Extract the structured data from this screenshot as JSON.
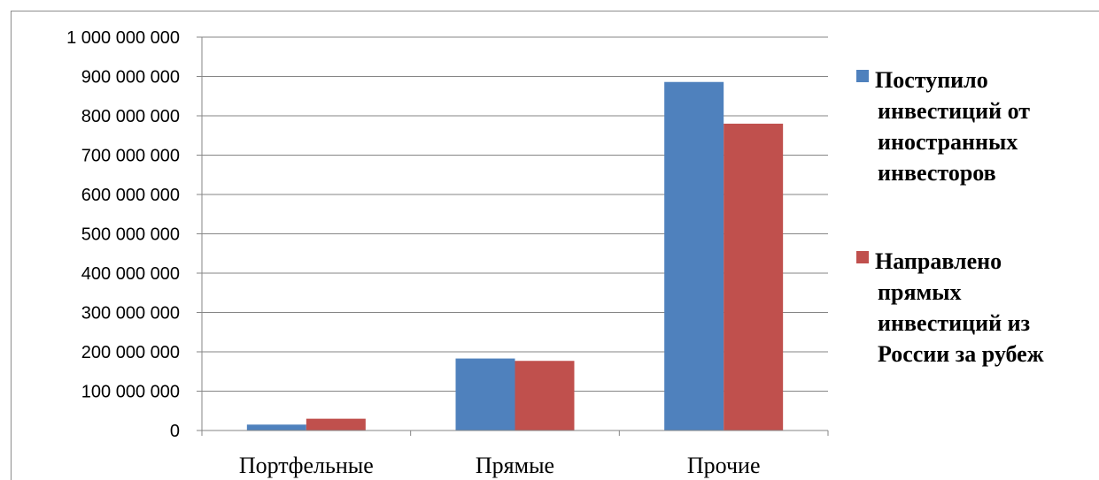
{
  "chart_data": {
    "type": "bar",
    "categories": [
      "Портфельные",
      "Прямые",
      "Прочие"
    ],
    "series": [
      {
        "name": "Поступило инвестиций от иностранных инвесторов",
        "name_lines": [
          "Поступило",
          "инвестиций от",
          "иностранных",
          "инвесторов"
        ],
        "color": "#4F81BD",
        "values": [
          15000000,
          183000000,
          886000000
        ]
      },
      {
        "name": "Направлено прямых инвестиций из России за рубеж",
        "name_lines": [
          "Направлено",
          "прямых",
          "инвестиций из",
          "России за рубеж"
        ],
        "color": "#C0504D",
        "values": [
          30000000,
          177000000,
          780000000
        ]
      }
    ],
    "ylim": [
      0,
      1000000000
    ],
    "ytick_step": 100000000,
    "ytick_labels": [
      "0",
      "100 000 000",
      "200 000 000",
      "300 000 000",
      "400 000 000",
      "500 000 000",
      "600 000 000",
      "700 000 000",
      "800 000 000",
      "900 000 000",
      "1 000 000 000"
    ],
    "grid": true,
    "legend_position": "right"
  }
}
